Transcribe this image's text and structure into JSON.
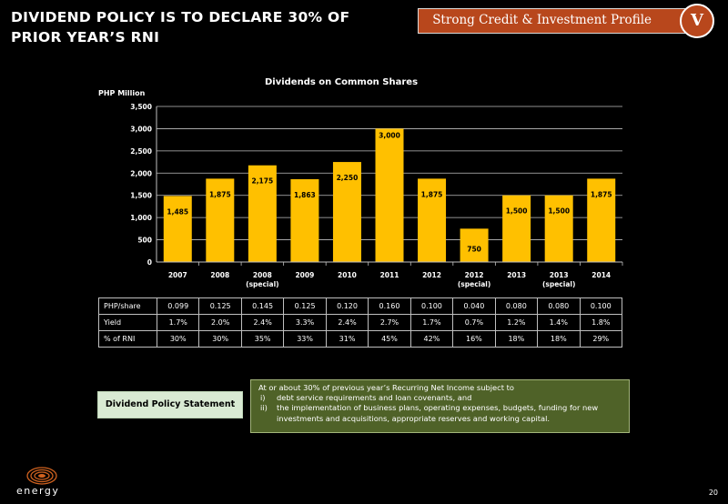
{
  "slide": {
    "title": "DIVIDEND POLICY IS TO DECLARE 30% OF PRIOR YEAR’S RNI",
    "section_label": "Strong Credit & Investment Profile",
    "section_badge": "V",
    "page_number": "20",
    "logo_text": "energy"
  },
  "colors": {
    "bar": "#ffc000",
    "section": "#b8471c",
    "policy_box": "#4f6228",
    "policy_label": "#d9ead3"
  },
  "chart_data": {
    "type": "bar",
    "title": "Dividends on Common Shares",
    "ylabel": "PHP Million",
    "ylim": [
      0,
      3500
    ],
    "yticks": [
      "0",
      "500",
      "1,000",
      "1,500",
      "2,000",
      "2,500",
      "3,000",
      "3,500"
    ],
    "ytick_values": [
      0,
      500,
      1000,
      1500,
      2000,
      2500,
      3000,
      3500
    ],
    "grid": true,
    "categories": [
      [
        "2007"
      ],
      [
        "2008"
      ],
      [
        "2008",
        "(special)"
      ],
      [
        "2009"
      ],
      [
        "2010"
      ],
      [
        "2011"
      ],
      [
        "2012"
      ],
      [
        "2012",
        "(special)"
      ],
      [
        "2013"
      ],
      [
        "2013",
        "(special)"
      ],
      [
        "2014"
      ]
    ],
    "values": [
      1485,
      1875,
      2175,
      1863,
      2250,
      3000,
      1875,
      750,
      1500,
      1500,
      1875
    ],
    "data_labels": [
      "1,485",
      "1,875",
      "2,175",
      "1,863",
      "2,250",
      "3,000",
      "1,875",
      "750",
      "1,500",
      "1,500",
      "1,875"
    ]
  },
  "table": {
    "rows": [
      {
        "label": "PHP/share",
        "values": [
          "0.099",
          "0.125",
          "0.145",
          "0.125",
          "0.120",
          "0.160",
          "0.100",
          "0.040",
          "0.080",
          "0.080",
          "0.100"
        ]
      },
      {
        "label": "Yield",
        "values": [
          "1.7%",
          "2.0%",
          "2.4%",
          "3.3%",
          "2.4%",
          "2.7%",
          "1.7%",
          "0.7%",
          "1.2%",
          "1.4%",
          "1.8%"
        ]
      },
      {
        "label": "% of RNI",
        "values": [
          "30%",
          "30%",
          "35%",
          "33%",
          "31%",
          "45%",
          "42%",
          "16%",
          "18%",
          "18%",
          "29%"
        ]
      }
    ]
  },
  "policy": {
    "label": "Dividend Policy Statement",
    "intro": "At or about 30% of previous year’s Recurring Net Income subject to",
    "items": [
      {
        "num": "i)",
        "text": "debt service requirements and loan covenants, and"
      },
      {
        "num": "ii)",
        "text": "the implementation of business plans, operating expenses, budgets, funding for new investments and acquisitions, appropriate reserves and working capital."
      }
    ]
  }
}
